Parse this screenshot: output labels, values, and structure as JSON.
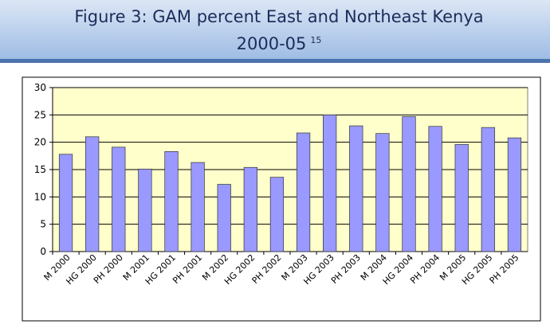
{
  "chart_data": {
    "type": "bar",
    "title": "Figure 3: GAM  percent East and Northeast Kenya 2000-05",
    "footnote": "15",
    "categories": [
      "M 2000",
      "HG 2000",
      "PH 2000",
      "M 2001",
      "HG 2001",
      "PH 2001",
      "M 2002",
      "HG 2002",
      "PH 2002",
      "M 2003",
      "HG 2003",
      "PH 2003",
      "M 2004",
      "HG 2004",
      "PH 2004",
      "M 2005",
      "HG 2005",
      "PH 2005"
    ],
    "values": [
      17.8,
      21,
      19.1,
      15.1,
      18.3,
      16.3,
      12.3,
      15.4,
      13.6,
      21.7,
      25,
      23,
      21.6,
      24.7,
      22.9,
      19.6,
      22.7,
      20.8
    ],
    "color": "#9999ff",
    "ylim": [
      0,
      30
    ],
    "yticks": [
      0,
      5,
      10,
      15,
      20,
      25,
      30
    ],
    "grid": true
  }
}
